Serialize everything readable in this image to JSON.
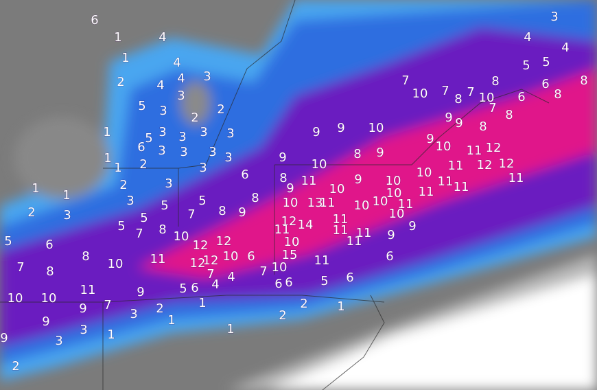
{
  "labels": [
    "6",
    "1",
    "4",
    "1",
    "4",
    "2",
    "4",
    "4",
    "3",
    "3",
    "5",
    "3",
    "2",
    "2",
    "1",
    "3",
    "3",
    "3",
    "3",
    "5",
    "6",
    "3",
    "3",
    "3",
    "3",
    "1",
    "1",
    "2",
    "3",
    "6",
    "2",
    "3",
    "1",
    "1",
    "2",
    "3",
    "3",
    "5",
    "5",
    "5",
    "7",
    "8",
    "9",
    "8",
    "5",
    "7",
    "8",
    "10",
    "12",
    "12",
    "5",
    "6",
    "8",
    "10",
    "11",
    "12",
    "12",
    "10",
    "6",
    "7",
    "8",
    "7",
    "7",
    "10",
    "15",
    "11",
    "9",
    "5",
    "6",
    "4",
    "4",
    "6",
    "6",
    "10",
    "10",
    "9",
    "7",
    "9",
    "3",
    "2",
    "1",
    "1",
    "3",
    "1",
    "3",
    "9",
    "2",
    "1",
    "2",
    "2",
    "1",
    "5",
    "6",
    "11",
    "6",
    "9",
    "9",
    "10",
    "11",
    "11",
    "11",
    "11",
    "14",
    "12",
    "11",
    "10",
    "10",
    "10",
    "10",
    "11",
    "10",
    "9",
    "10",
    "11",
    "13",
    "10",
    "8",
    "9",
    "11",
    "9",
    "10",
    "8",
    "9",
    "9",
    "9",
    "10",
    "7",
    "10",
    "7",
    "8",
    "7",
    "10",
    "7",
    "8",
    "6",
    "6",
    "8",
    "8",
    "4",
    "4",
    "5",
    "5",
    "3",
    "9",
    "9",
    "8",
    "8",
    "9",
    "10",
    "11",
    "12",
    "11",
    "12",
    "12",
    "11",
    "10",
    "11",
    "11",
    "11"
  ]
}
